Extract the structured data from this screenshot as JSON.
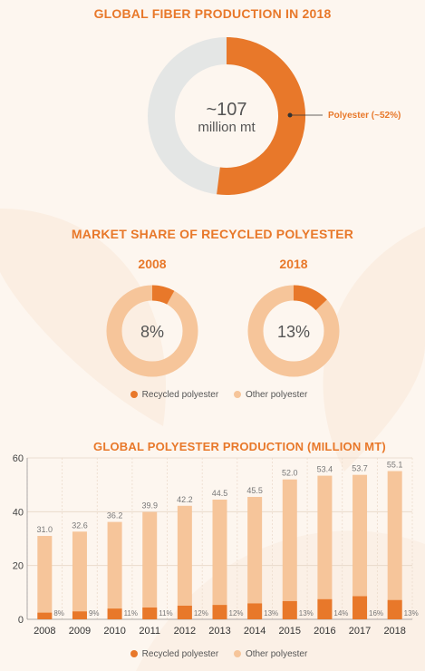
{
  "colors": {
    "orange": "#e8782a",
    "light_orange": "#f6c59a",
    "light_gray": "#e4e6e5",
    "background": "#fdf6ef"
  },
  "section1": {
    "title": "GLOBAL FIBER PRODUCTION IN 2018",
    "center_value": "~107",
    "center_unit": "million mt",
    "callout": "Polyester (~52%)"
  },
  "section2": {
    "title": "MARKET SHARE OF RECYCLED POLYESTER",
    "donuts": [
      {
        "year": "2008",
        "label": "8%"
      },
      {
        "year": "2018",
        "label": "13%"
      }
    ],
    "legend": [
      "Recycled polyester",
      "Other polyester"
    ]
  },
  "section3": {
    "title": "GLOBAL POLYESTER PRODUCTION (MILLION MT)",
    "legend": [
      "Recycled polyester",
      "Other polyester"
    ]
  },
  "chart_data": [
    {
      "type": "pie",
      "title": "GLOBAL FIBER PRODUCTION IN 2018",
      "total": "~107 million mt",
      "slices": [
        {
          "name": "Polyester",
          "value": 52,
          "label": "Polyester (~52%)"
        },
        {
          "name": "",
          "value": 48
        }
      ]
    },
    {
      "type": "pie",
      "title": "2008",
      "slices": [
        {
          "name": "Recycled polyester",
          "value": 8
        },
        {
          "name": "Other polyester",
          "value": 92
        }
      ]
    },
    {
      "type": "pie",
      "title": "2018",
      "slices": [
        {
          "name": "Recycled polyester",
          "value": 13
        },
        {
          "name": "Other polyester",
          "value": 87
        }
      ]
    },
    {
      "type": "bar",
      "stacked": true,
      "title": "GLOBAL POLYESTER PRODUCTION (MILLION MT)",
      "categories": [
        "2008",
        "2009",
        "2010",
        "2011",
        "2012",
        "2013",
        "2014",
        "2015",
        "2016",
        "2017",
        "2018"
      ],
      "totals": [
        31.0,
        32.6,
        36.2,
        39.9,
        42.2,
        44.5,
        45.5,
        52.0,
        53.4,
        53.7,
        55.1
      ],
      "total_labels": [
        "31.0",
        "32.6",
        "36.2",
        "39.9",
        "42.2",
        "44.5",
        "45.5",
        "52.0",
        "53.4",
        "53.7",
        "55.1"
      ],
      "recycled_share": [
        8,
        9,
        11,
        11,
        12,
        12,
        13,
        13,
        14,
        16,
        13
      ],
      "share_labels": [
        "8%",
        "9%",
        "11%",
        "11%",
        "12%",
        "12%",
        "13%",
        "13%",
        "14%",
        "16%",
        "13%"
      ],
      "series": [
        {
          "name": "Recycled polyester",
          "color": "#e8782a"
        },
        {
          "name": "Other polyester",
          "color": "#f6c59a"
        }
      ],
      "ylim": [
        0,
        60
      ],
      "yticks": [
        "0",
        "20",
        "40",
        "60"
      ],
      "grid": true,
      "legend": "bottom"
    }
  ]
}
